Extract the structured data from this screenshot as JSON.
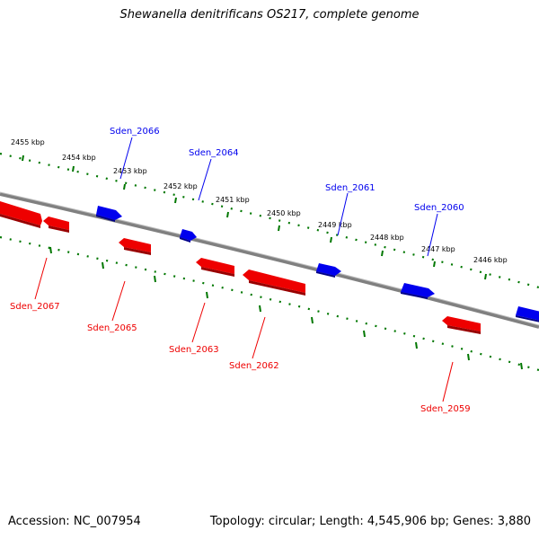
{
  "title": "Shewanella denitrificans OS217, complete genome",
  "footer": {
    "accession": "Accession: NC_007954",
    "summary": "Topology: circular; Length: 4,545,906 bp; Genes: 3,880"
  },
  "colors": {
    "forward": "#0000ee",
    "reverse": "#ee0000",
    "backbone": "#808080",
    "ruler": "#007700"
  },
  "ruler": [
    "2455 kbp",
    "2454 kbp",
    "2453 kbp",
    "2452 kbp",
    "2451 kbp",
    "2450 kbp",
    "2449 kbp",
    "2448 kbp",
    "2447 kbp",
    "2446 kbp"
  ],
  "forward_genes": [
    "Sden_2066",
    "Sden_2064",
    "Sden_2061",
    "Sden_2060"
  ],
  "reverse_genes": [
    "Sden_2067",
    "Sden_2065",
    "Sden_2063",
    "Sden_2062",
    "Sden_2059"
  ]
}
